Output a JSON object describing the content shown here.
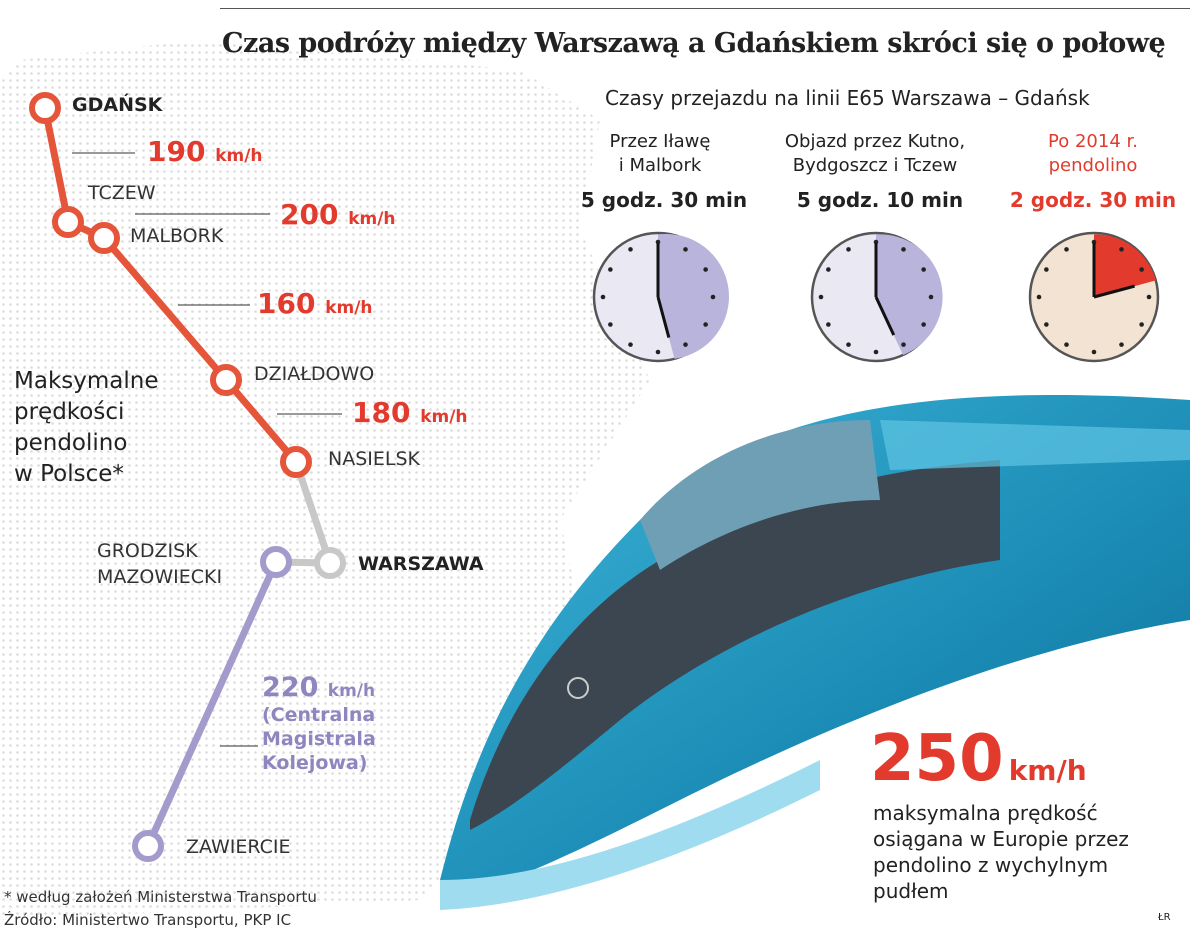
{
  "title": "Czas podróży między Warszawą a Gdańskiem skróci się o połowę",
  "subtitle": "Czasy przejazdu na linii E65 Warszawa – Gdańsk",
  "routes": [
    {
      "line1": "Przez Iławę",
      "line2": "i Malbork",
      "time": "5 godz. 30 min",
      "minutes": 330,
      "color": "#b9b4dc",
      "face": "#e9e8f3"
    },
    {
      "line1": "Objazd przez Kutno,",
      "line2": "Bydgoszcz i Tczew",
      "time": "5 godz. 10 min",
      "minutes": 310,
      "color": "#b9b4dc",
      "face": "#e9e8f3"
    },
    {
      "line1": "Po 2014 r.",
      "line2": "pendolino",
      "time": "2 godz. 30 min",
      "minutes": 150,
      "color": "#e23b2e",
      "face": "#f3e3d2"
    }
  ],
  "map": {
    "heading": [
      "Maksymalne",
      "prędkości",
      "pendolino",
      "w Polsce*"
    ],
    "cities": {
      "gdansk": "GDAŃSK",
      "tczew": "TCZEW",
      "malbork": "MALBORK",
      "dzialdowo": "DZIAŁDOWO",
      "nasielsk": "NASIELSK",
      "warszawa": "WARSZAWA",
      "grodzisk1": "GRODZISK",
      "grodzisk2": "MAZOWIECKI",
      "zawiercie": "ZAWIERCIE"
    },
    "speeds": [
      {
        "value": "190",
        "unit": "km/h"
      },
      {
        "value": "200",
        "unit": "km/h"
      },
      {
        "value": "160",
        "unit": "km/h"
      },
      {
        "value": "180",
        "unit": "km/h"
      },
      {
        "value": "220",
        "unit": "km/h"
      }
    ],
    "cmk": [
      "(Centralna",
      "Magistrala",
      "Kolejowa)"
    ],
    "colors": {
      "pendolino": "#e4553a",
      "existing": "#c8c8c8",
      "cmk": "#a49bcc"
    }
  },
  "highlight": {
    "value": "250",
    "unit": "km/h",
    "text": [
      "maksymalna prędkość",
      "osiągana w Europie przez",
      "pendolino z wychylnym",
      "pudłem"
    ]
  },
  "footnote": "* według założeń Ministerstwa Transportu",
  "source": "Źródło: Ministertwo Transportu, PKP IC",
  "credit": "ŁR"
}
